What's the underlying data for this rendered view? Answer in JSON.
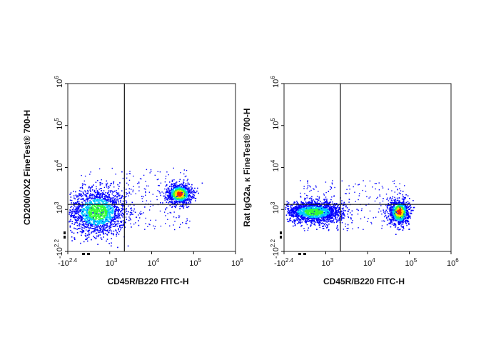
{
  "chart_data": [
    {
      "type": "scatter",
      "subtype": "flow-cytometry-density-plot",
      "xlabel": "CD45R/B220  FITC-H",
      "ylabel": "CD200/OX2  FineTest® 700-H",
      "x_ticks": [
        {
          "base": "-10",
          "exp": "2.4"
        },
        {
          "base": "10",
          "exp": "3"
        },
        {
          "base": "10",
          "exp": "4"
        },
        {
          "base": "10",
          "exp": "5"
        },
        {
          "base": "10",
          "exp": "6"
        }
      ],
      "y_ticks": [
        {
          "base": "-10",
          "exp": "2.2"
        },
        {
          "base": "10",
          "exp": "3"
        },
        {
          "base": "10",
          "exp": "4"
        },
        {
          "base": "10",
          "exp": "5"
        },
        {
          "base": "10",
          "exp": "6"
        }
      ],
      "quadrant_gate": {
        "x": 3.35,
        "y": 3.12
      },
      "populations": [
        {
          "name": "",
          "x_center": 2.7,
          "y_center": 2.95,
          "x_spread": 0.35,
          "y_spread": 0.28,
          "peak_density": "medium"
        },
        {
          "name": "",
          "x_center": 4.65,
          "y_center": 3.38,
          "x_spread": 0.15,
          "y_spread": 0.12,
          "peak_density": "high"
        }
      ]
    },
    {
      "type": "scatter",
      "subtype": "flow-cytometry-density-plot",
      "xlabel": "CD45R/B220  FITC-H",
      "ylabel": "Rat IgG2a, κ FineTest® 700-H",
      "x_ticks": [
        {
          "base": "-10",
          "exp": "2.4"
        },
        {
          "base": "10",
          "exp": "3"
        },
        {
          "base": "10",
          "exp": "4"
        },
        {
          "base": "10",
          "exp": "5"
        },
        {
          "base": "10",
          "exp": "6"
        }
      ],
      "y_ticks": [
        {
          "base": "-10",
          "exp": "2.2"
        },
        {
          "base": "10",
          "exp": "3"
        },
        {
          "base": "10",
          "exp": "4"
        },
        {
          "base": "10",
          "exp": "5"
        },
        {
          "base": "10",
          "exp": "6"
        }
      ],
      "quadrant_gate": {
        "x": 3.35,
        "y": 3.12
      },
      "populations": [
        {
          "name": "",
          "x_center": 2.7,
          "y_center": 2.95,
          "x_spread": 0.35,
          "y_spread": 0.12,
          "peak_density": "medium"
        },
        {
          "name": "",
          "x_center": 4.75,
          "y_center": 2.95,
          "x_spread": 0.12,
          "y_spread": 0.15,
          "peak_density": "high"
        }
      ]
    }
  ],
  "colors": {
    "density_low": "#0000ff",
    "density_mid": "#00c8ff",
    "density_midhigh": "#32ff32",
    "density_high": "#ffdc00",
    "density_peak": "#ff2000"
  }
}
